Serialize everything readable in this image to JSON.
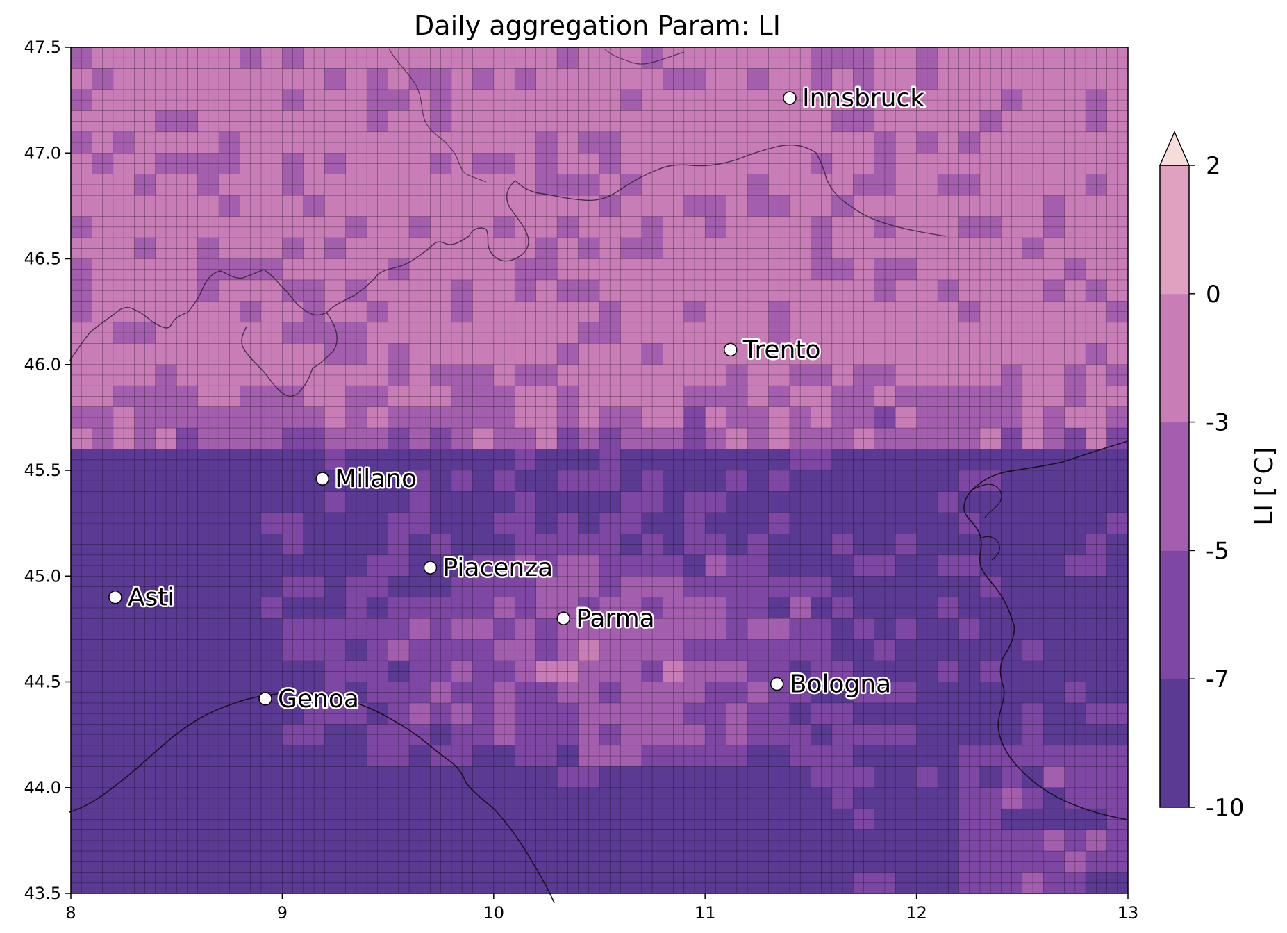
{
  "title": "Daily aggregation Param: LI",
  "map": {
    "lon_range": [
      8,
      13
    ],
    "lat_range": [
      43.5,
      47.5
    ],
    "x_ticks": [
      "8",
      "9",
      "10",
      "11",
      "12",
      "13"
    ],
    "y_ticks": [
      "43.5",
      "44.0",
      "44.5",
      "45.0",
      "45.5",
      "46.0",
      "46.5",
      "47.0",
      "47.5"
    ],
    "grid_cells": "0.1 degree, outlined",
    "coastline_color": "#1a1020",
    "border_color": "#3a2a40"
  },
  "colorbar": {
    "label": "LI  [°C]",
    "tick_labels": [
      "2",
      "0",
      "-3",
      "-5",
      "-7",
      "-10"
    ],
    "levels": [
      -10,
      -7,
      -5,
      -3,
      0,
      2
    ],
    "colors": [
      "#5b3a94",
      "#7d47a3",
      "#a35fae",
      "#c87db7",
      "#e0a0c0"
    ],
    "extend_max_color": "#f6dcda",
    "extend": "max"
  },
  "cities": [
    {
      "name": "Innsbruck",
      "lon": 11.4,
      "lat": 47.26
    },
    {
      "name": "Trento",
      "lon": 11.12,
      "lat": 46.07
    },
    {
      "name": "Milano",
      "lon": 9.19,
      "lat": 45.46
    },
    {
      "name": "Piacenza",
      "lon": 9.7,
      "lat": 45.04
    },
    {
      "name": "Asti",
      "lon": 8.21,
      "lat": 44.9
    },
    {
      "name": "Parma",
      "lon": 10.33,
      "lat": 44.8
    },
    {
      "name": "Bologna",
      "lon": 11.34,
      "lat": 44.49
    },
    {
      "name": "Genoa",
      "lon": 8.92,
      "lat": 44.42
    }
  ]
}
